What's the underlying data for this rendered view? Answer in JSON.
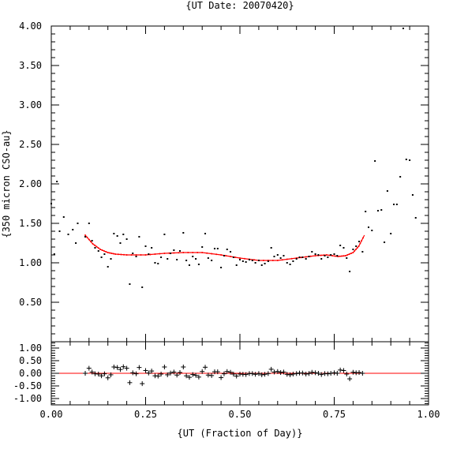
{
  "chart_data": {
    "type": "scatter",
    "title": "{UT Date: 20070420}",
    "xlabel": "{UT (Fraction of Day)}",
    "ylabel": "{350 micron CSO-au}",
    "xlim": [
      0,
      1
    ],
    "x_ticks": [
      "0.00",
      "0.25",
      "0.50",
      "0.75",
      "1.00"
    ],
    "main": {
      "ylim": [
        0,
        4
      ],
      "y_ticks": [
        "0.50",
        "1.00",
        "1.50",
        "2.00",
        "2.50",
        "3.00",
        "3.50",
        "4.00"
      ],
      "points": [
        [
          0.0,
          1.75
        ],
        [
          0.008,
          1.11
        ],
        [
          0.015,
          2.03
        ],
        [
          0.022,
          1.4
        ],
        [
          0.033,
          1.58
        ],
        [
          0.045,
          1.36
        ],
        [
          0.057,
          1.42
        ],
        [
          0.065,
          1.25
        ],
        [
          0.07,
          1.5
        ],
        [
          0.09,
          1.33
        ],
        [
          0.1,
          1.5
        ],
        [
          0.108,
          1.28
        ],
        [
          0.116,
          1.19
        ],
        [
          0.125,
          1.15
        ],
        [
          0.133,
          1.07
        ],
        [
          0.141,
          1.11
        ],
        [
          0.15,
          0.95
        ],
        [
          0.158,
          1.05
        ],
        [
          0.166,
          1.37
        ],
        [
          0.175,
          1.34
        ],
        [
          0.183,
          1.25
        ],
        [
          0.191,
          1.36
        ],
        [
          0.2,
          1.3
        ],
        [
          0.208,
          0.73
        ],
        [
          0.216,
          1.12
        ],
        [
          0.225,
          1.08
        ],
        [
          0.233,
          1.33
        ],
        [
          0.241,
          0.69
        ],
        [
          0.25,
          1.21
        ],
        [
          0.258,
          1.11
        ],
        [
          0.266,
          1.19
        ],
        [
          0.275,
          1.0
        ],
        [
          0.283,
          0.99
        ],
        [
          0.291,
          1.07
        ],
        [
          0.3,
          1.36
        ],
        [
          0.308,
          1.05
        ],
        [
          0.316,
          1.12
        ],
        [
          0.325,
          1.16
        ],
        [
          0.333,
          1.04
        ],
        [
          0.341,
          1.15
        ],
        [
          0.35,
          1.38
        ],
        [
          0.358,
          1.03
        ],
        [
          0.366,
          0.97
        ],
        [
          0.375,
          1.08
        ],
        [
          0.383,
          1.05
        ],
        [
          0.391,
          0.98
        ],
        [
          0.4,
          1.2
        ],
        [
          0.408,
          1.37
        ],
        [
          0.416,
          1.06
        ],
        [
          0.425,
          1.03
        ],
        [
          0.433,
          1.18
        ],
        [
          0.441,
          1.18
        ],
        [
          0.45,
          0.94
        ],
        [
          0.458,
          1.09
        ],
        [
          0.466,
          1.17
        ],
        [
          0.475,
          1.14
        ],
        [
          0.483,
          1.07
        ],
        [
          0.491,
          0.97
        ],
        [
          0.5,
          1.04
        ],
        [
          0.508,
          1.02
        ],
        [
          0.516,
          1.01
        ],
        [
          0.525,
          1.04
        ],
        [
          0.533,
          1.03
        ],
        [
          0.541,
          1.0
        ],
        [
          0.55,
          1.03
        ],
        [
          0.558,
          0.97
        ],
        [
          0.566,
          0.99
        ],
        [
          0.575,
          1.02
        ],
        [
          0.583,
          1.19
        ],
        [
          0.591,
          1.08
        ],
        [
          0.6,
          1.1
        ],
        [
          0.608,
          1.06
        ],
        [
          0.616,
          1.09
        ],
        [
          0.625,
          1.0
        ],
        [
          0.633,
          0.98
        ],
        [
          0.641,
          1.02
        ],
        [
          0.65,
          1.05
        ],
        [
          0.658,
          1.07
        ],
        [
          0.666,
          1.07
        ],
        [
          0.675,
          1.05
        ],
        [
          0.683,
          1.08
        ],
        [
          0.691,
          1.14
        ],
        [
          0.7,
          1.11
        ],
        [
          0.708,
          1.1
        ],
        [
          0.716,
          1.05
        ],
        [
          0.725,
          1.09
        ],
        [
          0.733,
          1.07
        ],
        [
          0.741,
          1.1
        ],
        [
          0.75,
          1.11
        ],
        [
          0.758,
          1.09
        ],
        [
          0.766,
          1.22
        ],
        [
          0.775,
          1.19
        ],
        [
          0.783,
          1.06
        ],
        [
          0.791,
          0.89
        ],
        [
          0.8,
          1.17
        ],
        [
          0.808,
          1.21
        ],
        [
          0.816,
          1.27
        ],
        [
          0.825,
          1.14
        ],
        [
          0.833,
          1.65
        ],
        [
          0.841,
          1.45
        ],
        [
          0.85,
          1.41
        ],
        [
          0.858,
          2.29
        ],
        [
          0.866,
          1.66
        ],
        [
          0.875,
          1.67
        ],
        [
          0.883,
          1.26
        ],
        [
          0.891,
          1.91
        ],
        [
          0.9,
          1.37
        ],
        [
          0.908,
          1.74
        ],
        [
          0.916,
          1.74
        ],
        [
          0.925,
          2.09
        ],
        [
          0.933,
          3.97
        ],
        [
          0.941,
          2.31
        ],
        [
          0.95,
          2.3
        ],
        [
          0.958,
          1.86
        ],
        [
          0.966,
          1.57
        ]
      ],
      "fit": [
        [
          0.09,
          1.35
        ],
        [
          0.11,
          1.24
        ],
        [
          0.13,
          1.17
        ],
        [
          0.15,
          1.13
        ],
        [
          0.17,
          1.11
        ],
        [
          0.2,
          1.1
        ],
        [
          0.25,
          1.1
        ],
        [
          0.3,
          1.12
        ],
        [
          0.35,
          1.13
        ],
        [
          0.4,
          1.13
        ],
        [
          0.45,
          1.1
        ],
        [
          0.5,
          1.06
        ],
        [
          0.55,
          1.03
        ],
        [
          0.6,
          1.03
        ],
        [
          0.65,
          1.06
        ],
        [
          0.7,
          1.09
        ],
        [
          0.73,
          1.1
        ],
        [
          0.76,
          1.08
        ],
        [
          0.78,
          1.09
        ],
        [
          0.8,
          1.13
        ],
        [
          0.815,
          1.21
        ],
        [
          0.83,
          1.35
        ]
      ]
    },
    "residuals": {
      "ylim": [
        -1.25,
        1.25
      ],
      "y_ticks": [
        "-1.00",
        "-0.50",
        "0.00",
        "0.50",
        "1.00"
      ],
      "points": [
        [
          0.09,
          0.0
        ],
        [
          0.1,
          0.2
        ],
        [
          0.108,
          0.05
        ],
        [
          0.116,
          -0.02
        ],
        [
          0.125,
          -0.03
        ],
        [
          0.133,
          -0.1
        ],
        [
          0.141,
          -0.02
        ],
        [
          0.15,
          -0.18
        ],
        [
          0.158,
          -0.06
        ],
        [
          0.166,
          0.25
        ],
        [
          0.175,
          0.23
        ],
        [
          0.183,
          0.15
        ],
        [
          0.191,
          0.26
        ],
        [
          0.2,
          0.2
        ],
        [
          0.208,
          -0.37
        ],
        [
          0.216,
          0.02
        ],
        [
          0.225,
          -0.02
        ],
        [
          0.233,
          0.23
        ],
        [
          0.241,
          -0.41
        ],
        [
          0.25,
          0.11
        ],
        [
          0.258,
          0.01
        ],
        [
          0.266,
          0.09
        ],
        [
          0.275,
          -0.1
        ],
        [
          0.283,
          -0.11
        ],
        [
          0.291,
          -0.03
        ],
        [
          0.3,
          0.25
        ],
        [
          0.308,
          -0.06
        ],
        [
          0.316,
          0.01
        ],
        [
          0.325,
          0.05
        ],
        [
          0.333,
          -0.07
        ],
        [
          0.341,
          0.03
        ],
        [
          0.35,
          0.25
        ],
        [
          0.358,
          -0.1
        ],
        [
          0.366,
          -0.16
        ],
        [
          0.375,
          -0.05
        ],
        [
          0.383,
          -0.08
        ],
        [
          0.391,
          -0.15
        ],
        [
          0.4,
          0.07
        ],
        [
          0.408,
          0.24
        ],
        [
          0.416,
          -0.07
        ],
        [
          0.425,
          -0.09
        ],
        [
          0.433,
          0.06
        ],
        [
          0.441,
          0.06
        ],
        [
          0.45,
          -0.17
        ],
        [
          0.458,
          -0.02
        ],
        [
          0.466,
          0.07
        ],
        [
          0.475,
          0.04
        ],
        [
          0.483,
          -0.03
        ],
        [
          0.491,
          -0.11
        ],
        [
          0.5,
          -0.03
        ],
        [
          0.508,
          -0.04
        ],
        [
          0.516,
          -0.05
        ],
        [
          0.525,
          -0.01
        ],
        [
          0.533,
          -0.01
        ],
        [
          0.541,
          -0.04
        ],
        [
          0.55,
          -0.01
        ],
        [
          0.558,
          -0.06
        ],
        [
          0.566,
          -0.04
        ],
        [
          0.575,
          -0.01
        ],
        [
          0.583,
          0.16
        ],
        [
          0.591,
          0.05
        ],
        [
          0.6,
          0.07
        ],
        [
          0.608,
          0.03
        ],
        [
          0.616,
          0.05
        ],
        [
          0.625,
          -0.04
        ],
        [
          0.633,
          -0.06
        ],
        [
          0.641,
          -0.03
        ],
        [
          0.65,
          -0.01
        ],
        [
          0.658,
          0.01
        ],
        [
          0.666,
          0.01
        ],
        [
          0.675,
          -0.03
        ],
        [
          0.683,
          -0.01
        ],
        [
          0.691,
          0.04
        ],
        [
          0.7,
          0.02
        ],
        [
          0.708,
          0.0
        ],
        [
          0.716,
          -0.05
        ],
        [
          0.725,
          -0.01
        ],
        [
          0.733,
          -0.02
        ],
        [
          0.741,
          0.0
        ],
        [
          0.75,
          0.02
        ],
        [
          0.758,
          0.0
        ],
        [
          0.766,
          0.13
        ],
        [
          0.775,
          0.11
        ],
        [
          0.783,
          -0.03
        ],
        [
          0.791,
          -0.22
        ],
        [
          0.8,
          0.04
        ],
        [
          0.808,
          0.02
        ],
        [
          0.816,
          0.03
        ],
        [
          0.825,
          0.0
        ]
      ]
    },
    "colors": {
      "fit": "#ff0000",
      "points": "#000000",
      "axes": "#000000"
    }
  }
}
